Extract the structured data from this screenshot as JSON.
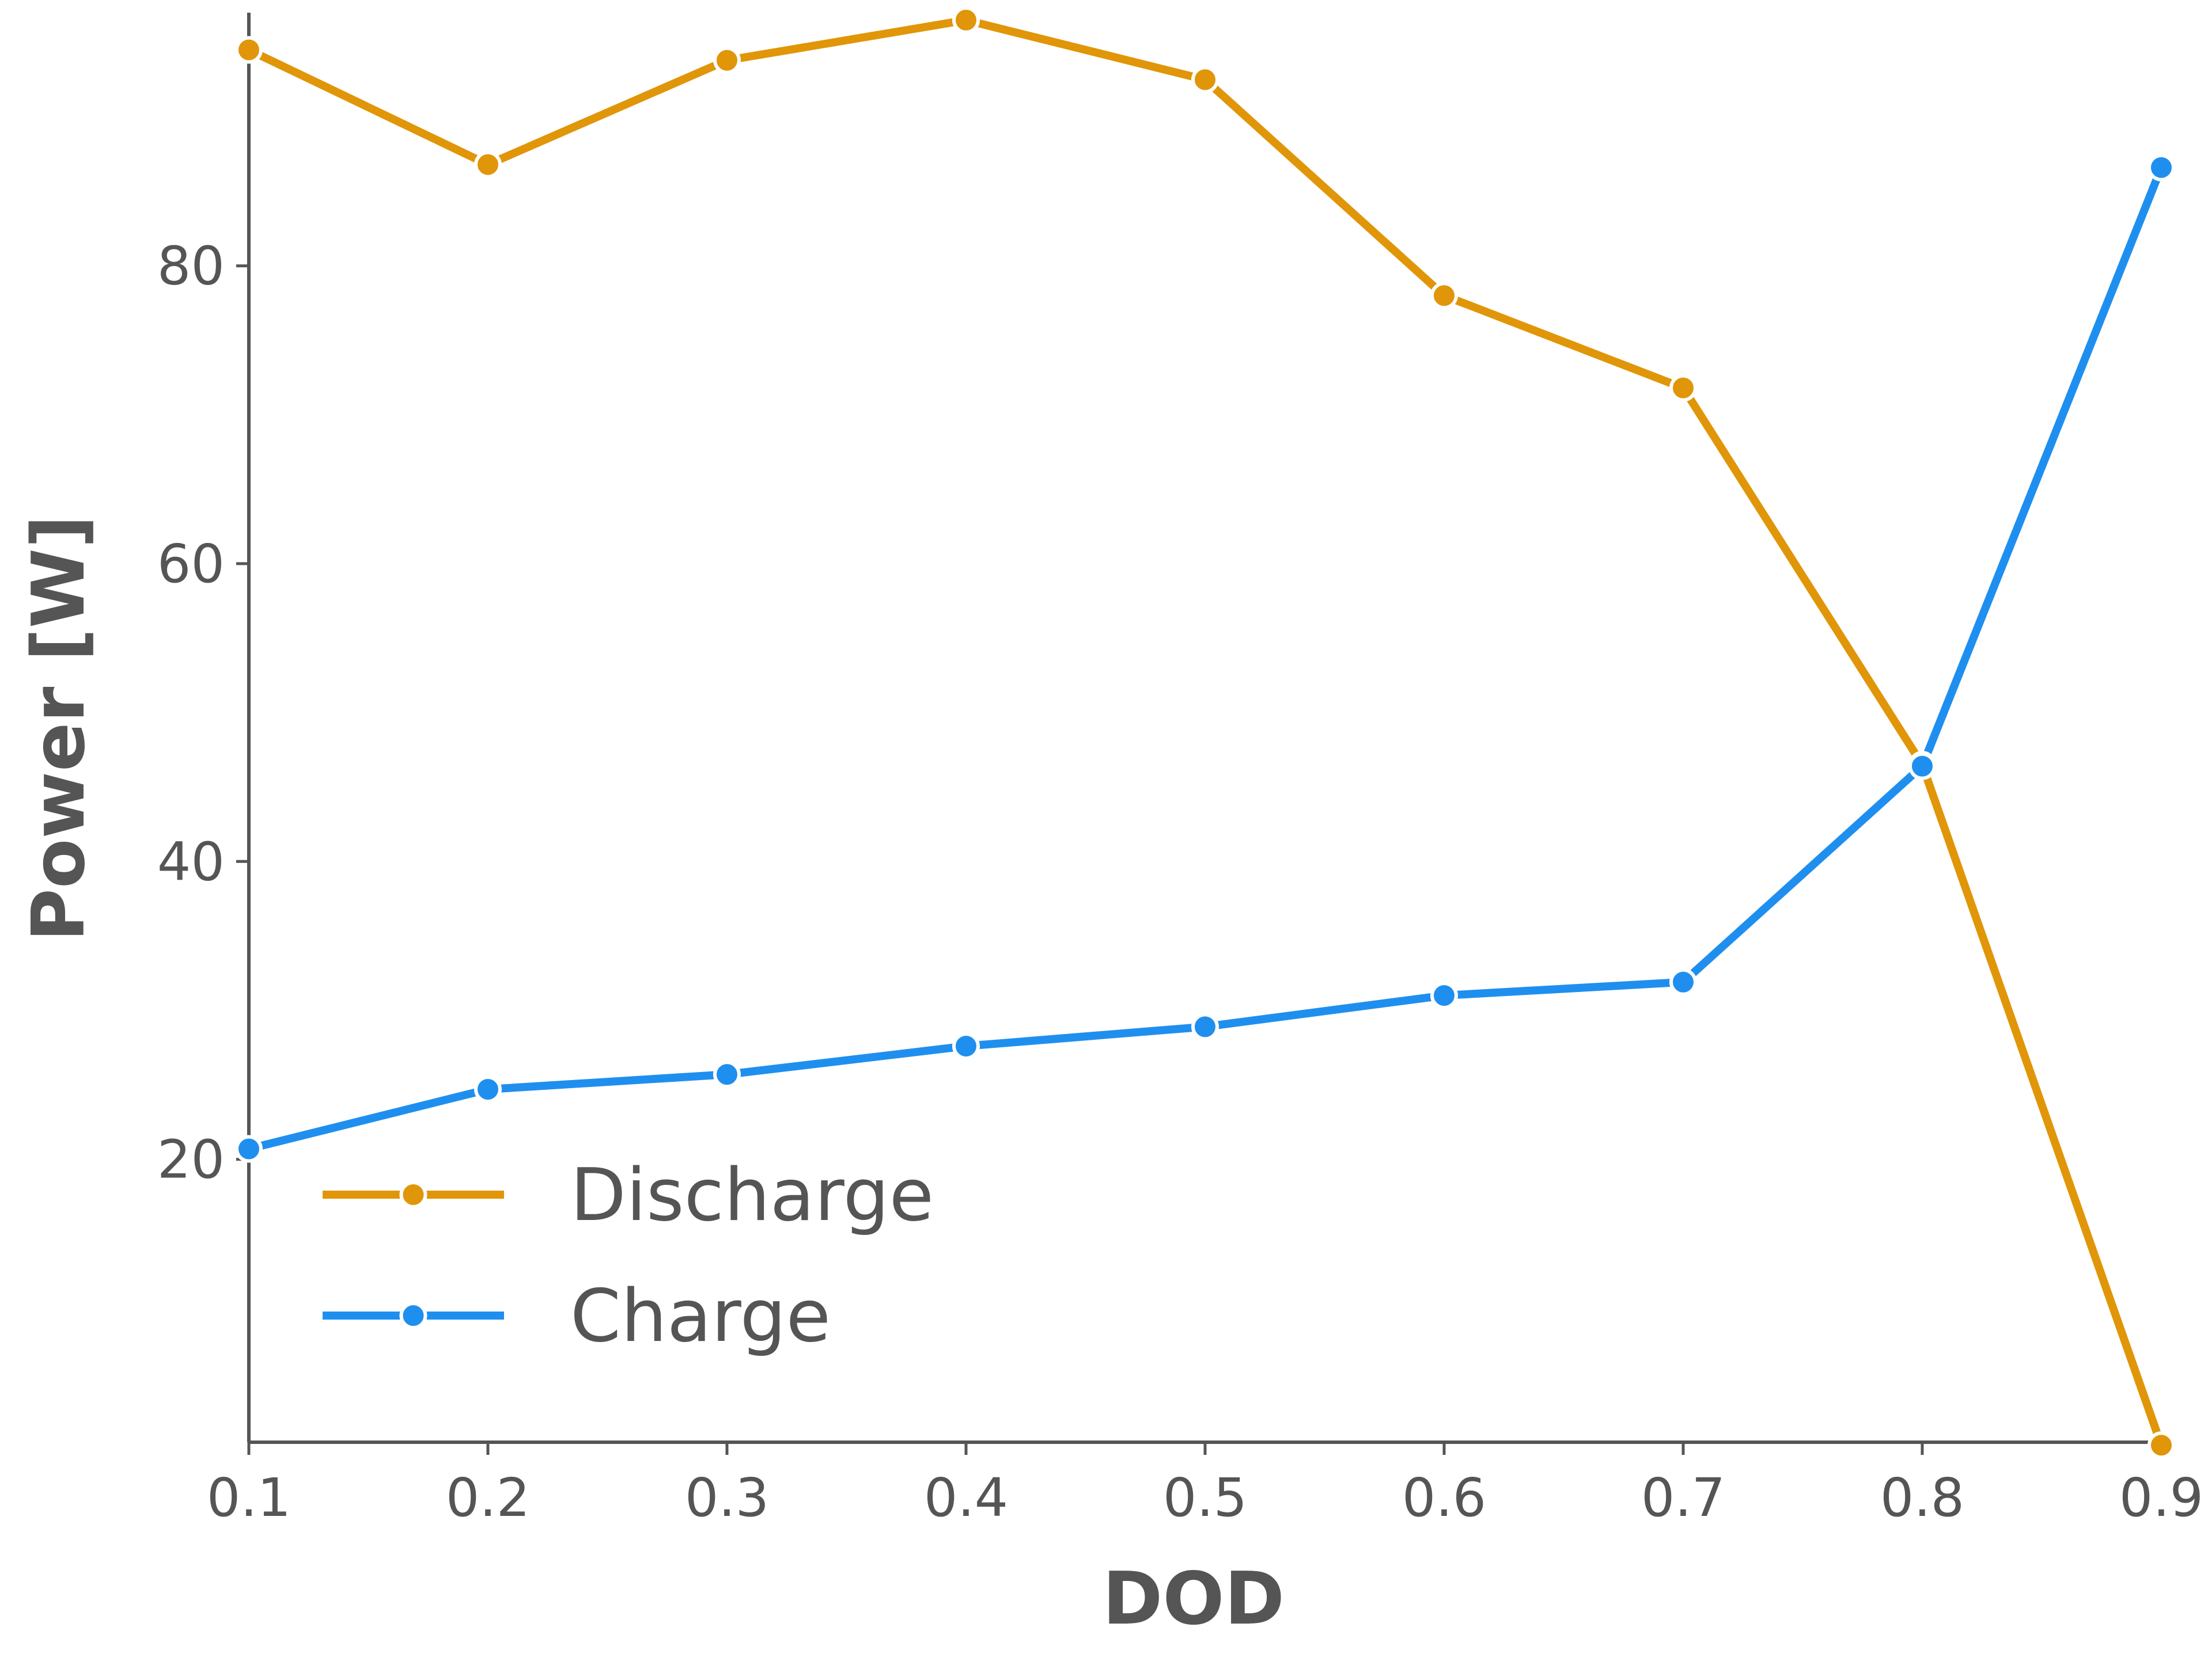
{
  "chart_data": {
    "type": "line",
    "title": "",
    "xlabel": "DOD",
    "ylabel": "Power [W]",
    "x": [
      0.1,
      0.2,
      0.3,
      0.4,
      0.5,
      0.6,
      0.7,
      0.8,
      0.9
    ],
    "x_ticks": [
      "0.1",
      "0.2",
      "0.3",
      "0.4",
      "0.5",
      "0.6",
      "0.7",
      "0.8",
      "0.9"
    ],
    "y_ticks": [
      "20",
      "40",
      "60",
      "80"
    ],
    "xlim": [
      0.1,
      0.9
    ],
    "ylim": [
      1,
      97
    ],
    "grid": false,
    "legend_position": "bottom-left",
    "series": [
      {
        "name": "Discharge",
        "color": "#e09608",
        "values": [
          94.5,
          86.8,
          93.8,
          96.5,
          92.5,
          78.0,
          71.8,
          46.5,
          0.8
        ]
      },
      {
        "name": "Charge",
        "color": "#1f8fef",
        "values": [
          20.7,
          24.7,
          25.7,
          27.6,
          28.9,
          31.0,
          31.9,
          46.4,
          86.6
        ]
      }
    ]
  }
}
